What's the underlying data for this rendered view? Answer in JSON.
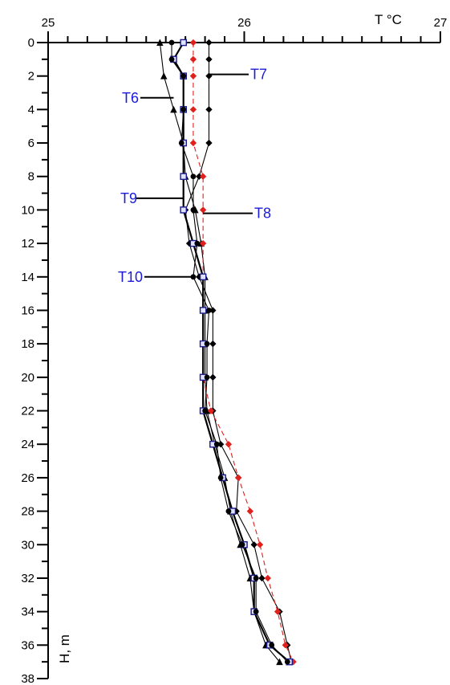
{
  "chart_data": {
    "type": "line",
    "xlabel": "T °C",
    "ylabel": "H, m",
    "xlim": [
      25,
      27
    ],
    "ylim": [
      0,
      38
    ],
    "y_inverted": true,
    "x_axis_position": "top",
    "x_ticks": [
      {
        "value": 25,
        "label": "25"
      },
      {
        "value": 26,
        "label": "26"
      },
      {
        "value": 27,
        "label": "27"
      }
    ],
    "y_ticks": [
      {
        "value": 0,
        "label": "0"
      },
      {
        "value": 2,
        "label": "2"
      },
      {
        "value": 4,
        "label": "4"
      },
      {
        "value": 6,
        "label": "6"
      },
      {
        "value": 8,
        "label": "8"
      },
      {
        "value": 10,
        "label": "10"
      },
      {
        "value": 12,
        "label": "12"
      },
      {
        "value": 14,
        "label": "14"
      },
      {
        "value": 16,
        "label": "16"
      },
      {
        "value": 18,
        "label": "18"
      },
      {
        "value": 20,
        "label": "20"
      },
      {
        "value": 22,
        "label": "22"
      },
      {
        "value": 24,
        "label": "24"
      },
      {
        "value": 26,
        "label": "26"
      },
      {
        "value": 28,
        "label": "28"
      },
      {
        "value": 30,
        "label": "30"
      },
      {
        "value": 32,
        "label": "32"
      },
      {
        "value": 34,
        "label": "34"
      },
      {
        "value": 36,
        "label": "36"
      },
      {
        "value": 38,
        "label": "38"
      }
    ],
    "grid": false,
    "series": [
      {
        "name": "T6",
        "color": "#000000",
        "marker": "triangle",
        "dashed": false,
        "points": [
          [
            25.57,
            0
          ],
          [
            25.59,
            2
          ],
          [
            25.64,
            4
          ],
          [
            25.69,
            6
          ],
          [
            25.7,
            8
          ],
          [
            25.75,
            10
          ],
          [
            25.78,
            12
          ],
          [
            25.8,
            14
          ],
          [
            25.8,
            16
          ],
          [
            25.8,
            18
          ],
          [
            25.8,
            20
          ],
          [
            25.81,
            22
          ],
          [
            25.85,
            24
          ],
          [
            25.9,
            26
          ],
          [
            25.93,
            28
          ],
          [
            25.98,
            30
          ],
          [
            26.03,
            32
          ],
          [
            26.05,
            34
          ],
          [
            26.11,
            36
          ],
          [
            26.18,
            37
          ]
        ]
      },
      {
        "name": "T7",
        "color": "#000000",
        "marker": "diamond",
        "dashed": false,
        "points": [
          [
            25.82,
            0
          ],
          [
            25.82,
            1
          ],
          [
            25.82,
            2
          ],
          [
            25.82,
            4
          ],
          [
            25.82,
            6
          ],
          [
            25.77,
            8
          ],
          [
            25.7,
            10
          ],
          [
            25.72,
            12
          ],
          [
            25.77,
            14
          ],
          [
            25.84,
            16
          ],
          [
            25.84,
            18
          ],
          [
            25.84,
            20
          ],
          [
            25.84,
            22
          ],
          [
            25.88,
            24
          ],
          [
            25.97,
            26
          ],
          [
            25.96,
            28
          ],
          [
            26.05,
            30
          ],
          [
            26.09,
            32
          ],
          [
            26.18,
            34
          ],
          [
            26.22,
            36
          ],
          [
            26.24,
            37
          ]
        ]
      },
      {
        "name": "T8",
        "color": "#e0201c",
        "marker": "diamond",
        "dashed": true,
        "points": [
          [
            25.74,
            0
          ],
          [
            25.74,
            1
          ],
          [
            25.74,
            2
          ],
          [
            25.74,
            4
          ],
          [
            25.74,
            6
          ],
          [
            25.79,
            8
          ],
          [
            25.79,
            10
          ],
          [
            25.79,
            12
          ],
          [
            25.79,
            14
          ],
          [
            25.79,
            16
          ],
          [
            25.79,
            18
          ],
          [
            25.79,
            20
          ],
          [
            25.83,
            22
          ],
          [
            25.92,
            24
          ],
          [
            25.97,
            26
          ],
          [
            26.03,
            28
          ],
          [
            26.08,
            30
          ],
          [
            26.12,
            32
          ],
          [
            26.17,
            34
          ],
          [
            26.21,
            36
          ],
          [
            26.25,
            37
          ]
        ]
      },
      {
        "name": "T9",
        "color": "#000000",
        "marker": "square",
        "dashed": false,
        "points": [
          [
            25.69,
            0
          ],
          [
            25.64,
            1
          ],
          [
            25.69,
            2
          ],
          [
            25.69,
            4
          ],
          [
            25.69,
            6
          ],
          [
            25.69,
            8
          ],
          [
            25.69,
            10
          ],
          [
            25.74,
            12
          ],
          [
            25.79,
            14
          ],
          [
            25.79,
            16
          ],
          [
            25.79,
            18
          ],
          [
            25.79,
            20
          ],
          [
            25.79,
            22
          ],
          [
            25.84,
            24
          ],
          [
            25.89,
            26
          ],
          [
            25.94,
            28
          ],
          [
            26.0,
            30
          ],
          [
            26.05,
            32
          ],
          [
            26.05,
            34
          ],
          [
            26.13,
            36
          ],
          [
            26.23,
            37
          ]
        ]
      },
      {
        "name": "T10",
        "color": "#000000",
        "marker": "circle",
        "dashed": false,
        "points": [
          [
            25.63,
            0
          ],
          [
            25.63,
            1
          ],
          [
            25.69,
            2
          ],
          [
            25.69,
            4
          ],
          [
            25.68,
            6
          ],
          [
            25.74,
            8
          ],
          [
            25.74,
            10
          ],
          [
            25.76,
            12
          ],
          [
            25.74,
            14
          ],
          [
            25.82,
            16
          ],
          [
            25.81,
            18
          ],
          [
            25.81,
            20
          ],
          [
            25.8,
            22
          ],
          [
            25.86,
            24
          ],
          [
            25.88,
            26
          ],
          [
            25.92,
            28
          ],
          [
            25.99,
            30
          ],
          [
            26.06,
            32
          ],
          [
            26.06,
            34
          ],
          [
            26.14,
            36
          ],
          [
            26.22,
            37
          ]
        ]
      }
    ],
    "annotations": [
      {
        "text": "T6",
        "series": "T6",
        "at": [
          25.64,
          3.3
        ]
      },
      {
        "text": "T7",
        "series": "T7",
        "at": [
          25.82,
          1.9
        ]
      },
      {
        "text": "T8",
        "series": "T8",
        "at": [
          25.79,
          10.2
        ]
      },
      {
        "text": "T9",
        "series": "T9",
        "at": [
          25.69,
          9.3
        ]
      },
      {
        "text": "T10",
        "series": "T10",
        "at": [
          25.74,
          14.0
        ]
      }
    ]
  }
}
